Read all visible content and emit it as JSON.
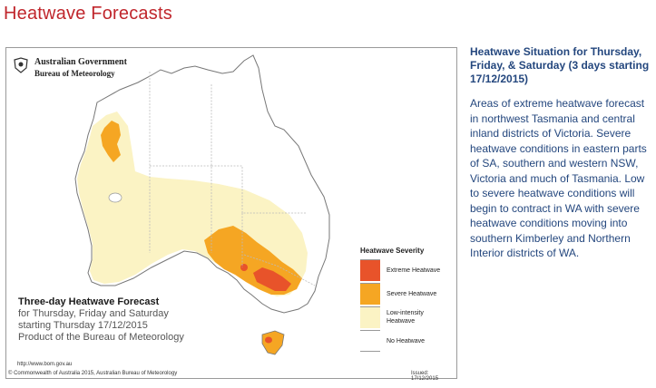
{
  "page": {
    "title": "Heatwave Forecasts"
  },
  "map": {
    "logo_line1": "Australian Government",
    "logo_line2": "Bureau of Meteorology",
    "forecast_title": "Three-day Heatwave Forecast",
    "forecast_lines": [
      "for Thursday, Friday and Saturday",
      "starting Thursday 17/12/2015",
      "Product of the Bureau of Meteorology"
    ],
    "legend": {
      "title": "Heatwave Severity",
      "items": [
        {
          "label": "Extreme Heatwave",
          "color": "#e8532a"
        },
        {
          "label": "Severe Heatwave",
          "color": "#f5a623"
        },
        {
          "label": "Low-intensity Heatwave",
          "color": "#fbf3c4"
        },
        {
          "label": "No Heatwave",
          "color": "#ffffff"
        }
      ]
    },
    "url": "http://www.bom.gov.au",
    "copyright": "© Commonwealth of Australia 2015, Australian Bureau of Meteorology",
    "issued": "Issued: 17/12/2015"
  },
  "sidebar": {
    "heading": "Heatwave Situation for Thursday, Friday, & Saturday (3 days starting 17/12/2015)",
    "body": "Areas of extreme heatwave forecast in northwest Tasmania and central inland districts of Victoria. Severe heatwave conditions in eastern parts of SA, southern and western NSW, Victoria and much of Tasmania. Low to severe heatwave conditions will begin to contract in WA with severe heatwave conditions moving into southern Kimberley and Northern Interior districts of WA."
  }
}
